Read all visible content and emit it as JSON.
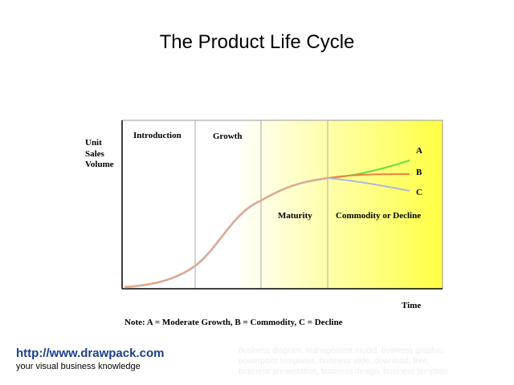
{
  "title": "The Product Life Cycle",
  "y_axis_label": [
    "Unit",
    "Sales",
    "Volume"
  ],
  "x_axis_label": "Time",
  "stages": [
    "Introduction",
    "Growth",
    "Maturity",
    "Commodity or Decline"
  ],
  "curve_labels": [
    "A",
    "B",
    "C"
  ],
  "note": "Note: A = Moderate Growth,  B = Commodity,  C = Decline",
  "footer": {
    "url": "http://www.drawpack.com",
    "tagline": "your visual business knowledge",
    "keywords": [
      "business diagram, management model, business graphic,",
      "powerpoint templates, business slide, download, free,",
      "business presentation, business design, business template"
    ]
  }
}
